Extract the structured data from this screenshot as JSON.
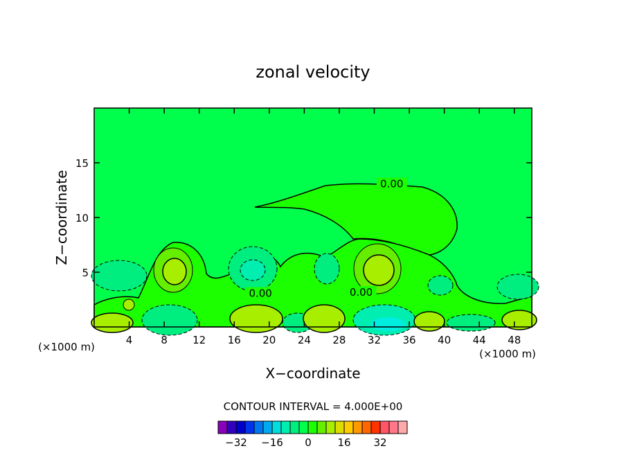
{
  "chart_data": {
    "type": "contour",
    "title": "zonal velocity",
    "xlabel": "X−coordinate",
    "ylabel": "Z−coordinate",
    "x_unit_left": "(×1000 m)",
    "x_unit_right": "(×1000 m)",
    "xlim": [
      0,
      50
    ],
    "ylim": [
      0,
      20
    ],
    "x_ticks": [
      4,
      8,
      12,
      16,
      20,
      24,
      28,
      32,
      36,
      40,
      44,
      48
    ],
    "y_ticks": [
      5,
      10,
      15
    ],
    "contour_interval_text": "CONTOUR INTERVAL = 4.000E+00",
    "contour_labels": [
      {
        "text": "0.00",
        "x": 34.0,
        "z": 13.0
      },
      {
        "text": "0.00",
        "x": 19.0,
        "z": 3.0
      },
      {
        "text": "0.00",
        "x": 30.5,
        "z": 3.1
      }
    ],
    "fill_levels": [
      {
        "max": -4,
        "color": "#00ff4c"
      },
      {
        "max": 4,
        "color": "#1bff00"
      },
      {
        "max": 8,
        "color": "#66ee00"
      },
      {
        "max": 12,
        "color": "#a8ee00"
      },
      {
        "min": -8,
        "max": -4,
        "color": "#00ee80"
      },
      {
        "min": -12,
        "max": -8,
        "color": "#00eeb0"
      },
      {
        "min": -16,
        "max": -12,
        "color": "#00eee0"
      }
    ],
    "colorbar": {
      "colors": [
        "#8800bb",
        "#3300bb",
        "#0000cc",
        "#0033ee",
        "#0077ee",
        "#00aaee",
        "#00dddd",
        "#00eeb0",
        "#00ee80",
        "#00ff4c",
        "#1bff00",
        "#66ee00",
        "#a8ee00",
        "#dddd00",
        "#ffcc00",
        "#ff9900",
        "#ff6600",
        "#ff3300",
        "#ff5566",
        "#ff7788",
        "#ffaaaa"
      ],
      "tick_labels": [
        "−32",
        "−16",
        "0",
        "16",
        "32"
      ],
      "tick_values": [
        -32,
        -16,
        0,
        16,
        32
      ]
    }
  }
}
